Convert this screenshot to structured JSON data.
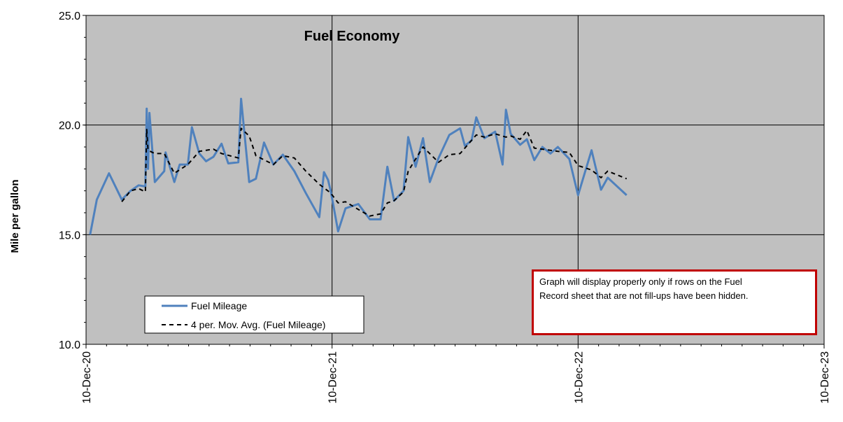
{
  "chart_data": {
    "type": "line",
    "title": "Fuel Economy",
    "ylabel": "Mile per gallon",
    "xlabel": "",
    "ylim": [
      10,
      25
    ],
    "y_ticks": [
      "10.0",
      "15.0",
      "20.0",
      "25.0"
    ],
    "x_range": [
      "2020-12-10",
      "2023-12-10"
    ],
    "x_ticks": [
      {
        "date": "2020-12-10",
        "label": "10-Dec-20"
      },
      {
        "date": "2021-12-10",
        "label": "10-Dec-21"
      },
      {
        "date": "2022-12-10",
        "label": "10-Dec-22"
      },
      {
        "date": "2023-12-10",
        "label": "10-Dec-23"
      }
    ],
    "grid": true,
    "legend_position": "bottom-left",
    "colors": {
      "plot_background": "#c0c0c0",
      "fuel_mileage": "#4f81bd",
      "moving_average": "#000000",
      "note_border": "#c00000"
    },
    "series": [
      {
        "name": "Fuel Mileage",
        "style": "solid",
        "points": [
          [
            "2020-12-16",
            15.0
          ],
          [
            "2020-12-26",
            16.6
          ],
          [
            "2021-01-13",
            17.8
          ],
          [
            "2021-02-01",
            16.6
          ],
          [
            "2021-02-14",
            17.0
          ],
          [
            "2021-02-26",
            17.25
          ],
          [
            "2021-03-08",
            17.2
          ],
          [
            "2021-03-10",
            20.75
          ],
          [
            "2021-03-12",
            18.0
          ],
          [
            "2021-03-14",
            20.55
          ],
          [
            "2021-03-22",
            17.4
          ],
          [
            "2021-04-05",
            17.9
          ],
          [
            "2021-04-07",
            18.75
          ],
          [
            "2021-04-20",
            17.4
          ],
          [
            "2021-04-28",
            18.2
          ],
          [
            "2021-05-10",
            18.2
          ],
          [
            "2021-05-16",
            19.9
          ],
          [
            "2021-05-27",
            18.7
          ],
          [
            "2021-06-06",
            18.35
          ],
          [
            "2021-06-17",
            18.55
          ],
          [
            "2021-06-29",
            19.15
          ],
          [
            "2021-07-09",
            18.25
          ],
          [
            "2021-07-24",
            18.3
          ],
          [
            "2021-07-28",
            21.2
          ],
          [
            "2021-08-09",
            17.4
          ],
          [
            "2021-08-19",
            17.55
          ],
          [
            "2021-08-31",
            19.2
          ],
          [
            "2021-09-14",
            18.2
          ],
          [
            "2021-09-28",
            18.65
          ],
          [
            "2021-10-15",
            17.9
          ],
          [
            "2021-11-01",
            16.9
          ],
          [
            "2021-11-21",
            15.8
          ],
          [
            "2021-11-28",
            17.85
          ],
          [
            "2021-12-04",
            17.5
          ],
          [
            "2021-12-08",
            17.0
          ],
          [
            "2021-12-19",
            15.15
          ],
          [
            "2021-12-30",
            16.2
          ],
          [
            "2022-01-18",
            16.4
          ],
          [
            "2022-02-04",
            15.7
          ],
          [
            "2022-02-20",
            15.7
          ],
          [
            "2022-03-02",
            18.1
          ],
          [
            "2022-03-12",
            16.55
          ],
          [
            "2022-03-26",
            17.0
          ],
          [
            "2022-04-02",
            19.45
          ],
          [
            "2022-04-13",
            18.1
          ],
          [
            "2022-04-24",
            19.4
          ],
          [
            "2022-05-04",
            17.4
          ],
          [
            "2022-05-17",
            18.5
          ],
          [
            "2022-06-02",
            19.55
          ],
          [
            "2022-06-18",
            19.85
          ],
          [
            "2022-06-25",
            19.05
          ],
          [
            "2022-07-05",
            19.3
          ],
          [
            "2022-07-12",
            20.35
          ],
          [
            "2022-07-24",
            19.4
          ],
          [
            "2022-08-09",
            19.7
          ],
          [
            "2022-08-20",
            18.2
          ],
          [
            "2022-08-25",
            20.7
          ],
          [
            "2022-09-01",
            19.6
          ],
          [
            "2022-09-15",
            19.1
          ],
          [
            "2022-09-25",
            19.35
          ],
          [
            "2022-10-06",
            18.4
          ],
          [
            "2022-10-18",
            19.0
          ],
          [
            "2022-10-30",
            18.7
          ],
          [
            "2022-11-10",
            19.0
          ],
          [
            "2022-11-27",
            18.45
          ],
          [
            "2022-12-10",
            16.8
          ],
          [
            "2022-12-30",
            18.85
          ],
          [
            "2023-01-13",
            17.05
          ],
          [
            "2023-01-23",
            17.6
          ],
          [
            "2023-02-20",
            16.8
          ]
        ]
      },
      {
        "name": "4 per. Mov. Avg. (Fuel Mileage)",
        "style": "dashed",
        "points": [
          [
            "2021-02-01",
            16.5
          ],
          [
            "2021-02-14",
            17.0
          ],
          [
            "2021-02-26",
            17.1
          ],
          [
            "2021-03-08",
            16.95
          ],
          [
            "2021-03-10",
            19.8
          ],
          [
            "2021-03-12",
            18.85
          ],
          [
            "2021-03-22",
            18.7
          ],
          [
            "2021-04-05",
            18.7
          ],
          [
            "2021-04-20",
            17.8
          ],
          [
            "2021-05-10",
            18.2
          ],
          [
            "2021-05-27",
            18.8
          ],
          [
            "2021-06-17",
            18.9
          ],
          [
            "2021-06-29",
            18.7
          ],
          [
            "2021-07-24",
            18.5
          ],
          [
            "2021-07-28",
            19.85
          ],
          [
            "2021-08-09",
            19.5
          ],
          [
            "2021-08-19",
            18.6
          ],
          [
            "2021-09-14",
            18.2
          ],
          [
            "2021-09-28",
            18.6
          ],
          [
            "2021-10-15",
            18.5
          ],
          [
            "2021-11-01",
            17.9
          ],
          [
            "2021-11-21",
            17.3
          ],
          [
            "2021-12-08",
            16.9
          ],
          [
            "2021-12-19",
            16.45
          ],
          [
            "2021-12-30",
            16.5
          ],
          [
            "2022-01-18",
            16.15
          ],
          [
            "2022-02-04",
            15.85
          ],
          [
            "2022-02-20",
            15.95
          ],
          [
            "2022-03-02",
            16.45
          ],
          [
            "2022-03-12",
            16.55
          ],
          [
            "2022-03-26",
            16.95
          ],
          [
            "2022-04-02",
            17.9
          ],
          [
            "2022-04-24",
            19.0
          ],
          [
            "2022-05-17",
            18.3
          ],
          [
            "2022-06-02",
            18.65
          ],
          [
            "2022-06-18",
            18.7
          ],
          [
            "2022-07-12",
            19.55
          ],
          [
            "2022-07-24",
            19.45
          ],
          [
            "2022-08-09",
            19.6
          ],
          [
            "2022-08-25",
            19.45
          ],
          [
            "2022-09-01",
            19.5
          ],
          [
            "2022-09-15",
            19.35
          ],
          [
            "2022-09-25",
            19.75
          ],
          [
            "2022-10-06",
            18.95
          ],
          [
            "2022-10-30",
            18.85
          ],
          [
            "2022-11-10",
            18.8
          ],
          [
            "2022-11-27",
            18.75
          ],
          [
            "2022-12-10",
            18.15
          ],
          [
            "2022-12-30",
            17.95
          ],
          [
            "2023-01-13",
            17.6
          ],
          [
            "2023-01-23",
            17.9
          ],
          [
            "2023-02-20",
            17.55
          ]
        ]
      }
    ]
  },
  "note": {
    "line1": "Graph will display properly only if rows on the Fuel",
    "line2": "Record sheet that are not fill-ups have been hidden."
  }
}
